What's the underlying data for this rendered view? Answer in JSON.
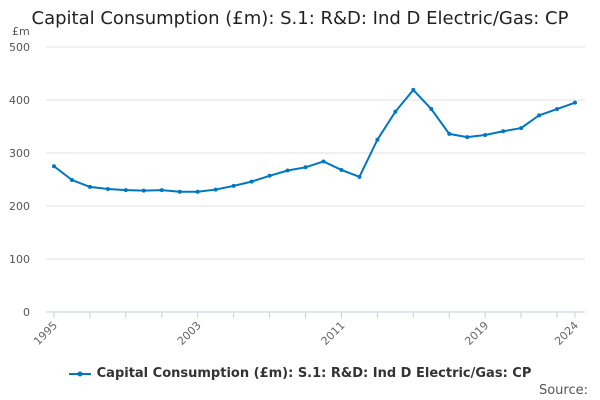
{
  "chart_data": {
    "type": "line",
    "title": "Capital Consumption (£m): S.1: R&D: Ind D Electric/Gas: CP",
    "ylabel": "£m",
    "xlabel": "",
    "ylim": [
      0,
      500
    ],
    "yticks": [
      0,
      100,
      200,
      300,
      400,
      500
    ],
    "xtick_labels": [
      "1995",
      "2003",
      "2011",
      "2019",
      "2024"
    ],
    "grid": true,
    "legend_position": "bottom",
    "color": "#0077c0",
    "x": [
      1995,
      1996,
      1997,
      1998,
      1999,
      2000,
      2001,
      2002,
      2003,
      2004,
      2005,
      2006,
      2007,
      2008,
      2009,
      2010,
      2011,
      2012,
      2013,
      2014,
      2015,
      2016,
      2017,
      2018,
      2019,
      2020,
      2021,
      2022,
      2023,
      2024
    ],
    "series": [
      {
        "name": "Capital Consumption (£m): S.1: R&D: Ind D Electric/Gas: CP",
        "values": [
          275,
          249,
          236,
          232,
          230,
          229,
          230,
          227,
          227,
          231,
          238,
          246,
          257,
          267,
          273,
          284,
          268,
          255,
          325,
          378,
          419,
          383,
          336,
          330,
          334,
          341,
          347,
          371,
          383,
          395
        ]
      }
    ],
    "source_label": "Source:"
  }
}
